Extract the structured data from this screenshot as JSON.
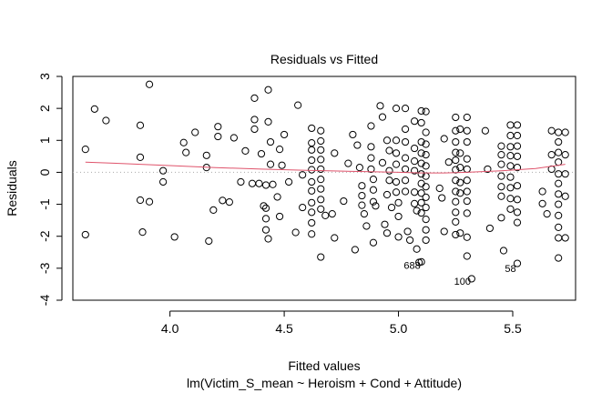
{
  "chart_data": {
    "type": "scatter",
    "title": "Residuals vs Fitted",
    "xlabel": "Fitted values",
    "subtitle": "lm(Victim_S_mean ~ Heroism + Cond + Attitude)",
    "ylabel": "Residuals",
    "xlim": [
      3.575,
      5.775
    ],
    "ylim": [
      -4.0,
      3.0
    ],
    "xticks": [
      4.0,
      4.5,
      5.0,
      5.5
    ],
    "yticks": [
      -4,
      -3,
      -2,
      -1,
      0,
      1,
      2,
      3
    ],
    "xtick_labels": [
      "4.0",
      "4.5",
      "5.0",
      "5.5"
    ],
    "ytick_labels": [
      "-4",
      "-3",
      "-2",
      "-1",
      "0",
      "1",
      "2",
      "3"
    ],
    "zero_line": true,
    "colors": {
      "points": "#000000",
      "smooth": "#df536b",
      "zero_line": "#aaaaaa",
      "frame": "#000000"
    },
    "points": [
      [
        3.63,
        0.72
      ],
      [
        3.63,
        -1.95
      ],
      [
        3.67,
        1.98
      ],
      [
        3.72,
        1.62
      ],
      [
        3.87,
        1.47
      ],
      [
        3.87,
        0.47
      ],
      [
        3.87,
        -0.87
      ],
      [
        3.88,
        -1.87
      ],
      [
        3.91,
        2.75
      ],
      [
        3.91,
        -0.92
      ],
      [
        3.97,
        0.05
      ],
      [
        3.97,
        -0.3
      ],
      [
        4.02,
        -2.02
      ],
      [
        4.06,
        0.93
      ],
      [
        4.07,
        0.62
      ],
      [
        4.11,
        1.25
      ],
      [
        4.16,
        0.53
      ],
      [
        4.16,
        0.15
      ],
      [
        4.17,
        -2.15
      ],
      [
        4.19,
        -1.18
      ],
      [
        4.21,
        1.12
      ],
      [
        4.21,
        1.43
      ],
      [
        4.23,
        -0.88
      ],
      [
        4.26,
        -0.93
      ],
      [
        4.28,
        1.08
      ],
      [
        4.31,
        -0.3
      ],
      [
        4.33,
        0.67
      ],
      [
        4.36,
        -0.35
      ],
      [
        4.37,
        2.32
      ],
      [
        4.37,
        1.65
      ],
      [
        4.37,
        1.35
      ],
      [
        4.39,
        -0.35
      ],
      [
        4.4,
        0.58
      ],
      [
        4.41,
        -1.05
      ],
      [
        4.42,
        -1.12
      ],
      [
        4.42,
        -0.4
      ],
      [
        4.42,
        -1.45
      ],
      [
        4.42,
        -1.8
      ],
      [
        4.43,
        -2.08
      ],
      [
        4.43,
        2.58
      ],
      [
        4.43,
        1.58
      ],
      [
        4.44,
        0.95
      ],
      [
        4.44,
        0.25
      ],
      [
        4.45,
        -0.38
      ],
      [
        4.47,
        -0.77
      ],
      [
        4.48,
        0.72
      ],
      [
        4.48,
        -1.38
      ],
      [
        4.49,
        0.22
      ],
      [
        4.5,
        1.18
      ],
      [
        4.52,
        -0.3
      ],
      [
        4.55,
        -1.88
      ],
      [
        4.56,
        2.1
      ],
      [
        4.58,
        -0.08
      ],
      [
        4.58,
        -1.1
      ],
      [
        4.62,
        1.38
      ],
      [
        4.62,
        0.92
      ],
      [
        4.62,
        0.7
      ],
      [
        4.62,
        0.38
      ],
      [
        4.62,
        0.08
      ],
      [
        4.62,
        -0.3
      ],
      [
        4.62,
        -0.58
      ],
      [
        4.62,
        -0.95
      ],
      [
        4.62,
        -1.25
      ],
      [
        4.62,
        -1.58
      ],
      [
        4.62,
        -1.93
      ],
      [
        4.66,
        1.3
      ],
      [
        4.66,
        0.98
      ],
      [
        4.66,
        0.7
      ],
      [
        4.66,
        0.4
      ],
      [
        4.66,
        0.1
      ],
      [
        4.66,
        -0.22
      ],
      [
        4.66,
        -0.52
      ],
      [
        4.66,
        -0.85
      ],
      [
        4.66,
        -1.15
      ],
      [
        4.66,
        -2.65
      ],
      [
        4.68,
        -1.35
      ],
      [
        4.71,
        -1.3
      ],
      [
        4.72,
        0.6
      ],
      [
        4.72,
        -2.05
      ],
      [
        4.76,
        -0.9
      ],
      [
        4.78,
        0.28
      ],
      [
        4.8,
        1.18
      ],
      [
        4.81,
        -2.42
      ],
      [
        4.82,
        0.85
      ],
      [
        4.83,
        0.15
      ],
      [
        4.84,
        -0.42
      ],
      [
        4.84,
        -0.73
      ],
      [
        4.84,
        -1.03
      ],
      [
        4.85,
        -1.3
      ],
      [
        4.86,
        -1.68
      ],
      [
        4.88,
        1.45
      ],
      [
        4.88,
        0.8
      ],
      [
        4.88,
        0.45
      ],
      [
        4.88,
        0.1
      ],
      [
        4.89,
        -0.22
      ],
      [
        4.89,
        -0.55
      ],
      [
        4.89,
        -0.92
      ],
      [
        4.89,
        -2.2
      ],
      [
        4.9,
        -1.05
      ],
      [
        4.92,
        2.08
      ],
      [
        4.93,
        1.73
      ],
      [
        4.93,
        0.3
      ],
      [
        4.94,
        -1.63
      ],
      [
        4.95,
        1.0
      ],
      [
        4.95,
        -0.7
      ],
      [
        4.95,
        -1.9
      ],
      [
        4.96,
        0.68
      ],
      [
        4.96,
        0.05
      ],
      [
        4.96,
        -0.25
      ],
      [
        4.97,
        -1.1
      ],
      [
        4.99,
        2.0
      ],
      [
        4.99,
        1.0
      ],
      [
        4.99,
        0.6
      ],
      [
        4.99,
        0.25
      ],
      [
        4.99,
        -0.3
      ],
      [
        4.99,
        -0.62
      ],
      [
        5.0,
        -0.95
      ],
      [
        5.0,
        -1.38
      ],
      [
        5.0,
        -2.02
      ],
      [
        5.03,
        2.0
      ],
      [
        5.03,
        1.35
      ],
      [
        5.03,
        0.95
      ],
      [
        5.03,
        0.45
      ],
      [
        5.03,
        0.1
      ],
      [
        5.03,
        -0.25
      ],
      [
        5.03,
        -0.6
      ],
      [
        5.04,
        -1.85
      ],
      [
        5.05,
        -2.12
      ],
      [
        5.07,
        1.6
      ],
      [
        5.07,
        0.75
      ],
      [
        5.07,
        0.35
      ],
      [
        5.07,
        0.05
      ],
      [
        5.07,
        -0.62
      ],
      [
        5.07,
        -0.98
      ],
      [
        5.08,
        -1.2
      ],
      [
        5.08,
        -2.4
      ],
      [
        5.09,
        -2.82
      ],
      [
        5.1,
        1.92
      ],
      [
        5.1,
        1.55
      ],
      [
        5.1,
        0.95
      ],
      [
        5.1,
        0.6
      ],
      [
        5.1,
        0.28
      ],
      [
        5.1,
        -0.05
      ],
      [
        5.1,
        -0.35
      ],
      [
        5.1,
        -0.65
      ],
      [
        5.1,
        -0.95
      ],
      [
        5.1,
        -1.27
      ],
      [
        5.1,
        -2.8
      ],
      [
        5.12,
        1.9
      ],
      [
        5.12,
        1.25
      ],
      [
        5.12,
        0.88
      ],
      [
        5.12,
        0.55
      ],
      [
        5.12,
        0.2
      ],
      [
        5.12,
        -0.12
      ],
      [
        5.12,
        -0.45
      ],
      [
        5.12,
        -0.78
      ],
      [
        5.12,
        -1.1
      ],
      [
        5.12,
        -1.47
      ],
      [
        5.12,
        -1.8
      ],
      [
        5.12,
        -2.12
      ],
      [
        5.18,
        -0.5
      ],
      [
        5.19,
        -0.8
      ],
      [
        5.2,
        -1.85
      ],
      [
        5.2,
        1.05
      ],
      [
        5.22,
        0.32
      ],
      [
        5.25,
        1.72
      ],
      [
        5.25,
        1.3
      ],
      [
        5.25,
        0.95
      ],
      [
        5.25,
        0.62
      ],
      [
        5.25,
        0.38
      ],
      [
        5.25,
        0.08
      ],
      [
        5.25,
        -0.25
      ],
      [
        5.25,
        -0.6
      ],
      [
        5.25,
        -0.92
      ],
      [
        5.25,
        -1.25
      ],
      [
        5.25,
        -1.55
      ],
      [
        5.25,
        -1.95
      ],
      [
        5.27,
        1.35
      ],
      [
        5.27,
        0.6
      ],
      [
        5.27,
        0.15
      ],
      [
        5.27,
        -0.32
      ],
      [
        5.27,
        -0.65
      ],
      [
        5.27,
        -1.9
      ],
      [
        5.3,
        1.72
      ],
      [
        5.3,
        1.3
      ],
      [
        5.3,
        0.95
      ],
      [
        5.3,
        0.42
      ],
      [
        5.3,
        0.1
      ],
      [
        5.3,
        -0.25
      ],
      [
        5.3,
        -0.6
      ],
      [
        5.3,
        -0.9
      ],
      [
        5.3,
        -1.28
      ],
      [
        5.3,
        -2.03
      ],
      [
        5.3,
        -2.62
      ],
      [
        5.32,
        -3.33
      ],
      [
        5.38,
        1.3
      ],
      [
        5.39,
        0.1
      ],
      [
        5.4,
        -1.75
      ],
      [
        5.45,
        0.82
      ],
      [
        5.45,
        0.55
      ],
      [
        5.45,
        0.25
      ],
      [
        5.45,
        -0.12
      ],
      [
        5.45,
        -0.45
      ],
      [
        5.45,
        -0.75
      ],
      [
        5.45,
        -1.42
      ],
      [
        5.46,
        -2.45
      ],
      [
        5.49,
        1.48
      ],
      [
        5.49,
        1.15
      ],
      [
        5.49,
        0.8
      ],
      [
        5.49,
        0.52
      ],
      [
        5.49,
        0.2
      ],
      [
        5.49,
        -0.15
      ],
      [
        5.49,
        -0.48
      ],
      [
        5.49,
        -0.82
      ],
      [
        5.49,
        -1.15
      ],
      [
        5.52,
        1.48
      ],
      [
        5.52,
        1.15
      ],
      [
        5.52,
        0.82
      ],
      [
        5.52,
        0.5
      ],
      [
        5.52,
        0.15
      ],
      [
        5.52,
        -0.42
      ],
      [
        5.52,
        -0.85
      ],
      [
        5.52,
        -1.25
      ],
      [
        5.52,
        -1.57
      ],
      [
        5.52,
        -2.85
      ],
      [
        5.63,
        -0.6
      ],
      [
        5.63,
        -0.98
      ],
      [
        5.65,
        -1.3
      ],
      [
        5.67,
        1.3
      ],
      [
        5.67,
        0.55
      ],
      [
        5.67,
        0.1
      ],
      [
        5.7,
        1.25
      ],
      [
        5.7,
        0.95
      ],
      [
        5.7,
        0.62
      ],
      [
        5.7,
        0.32
      ],
      [
        5.7,
        -0.05
      ],
      [
        5.7,
        -0.35
      ],
      [
        5.7,
        -0.68
      ],
      [
        5.7,
        -1.0
      ],
      [
        5.7,
        -1.35
      ],
      [
        5.7,
        -1.72
      ],
      [
        5.7,
        -2.05
      ],
      [
        5.7,
        -2.68
      ],
      [
        5.73,
        1.25
      ],
      [
        5.73,
        0.55
      ],
      [
        5.73,
        -0.05
      ],
      [
        5.73,
        -0.75
      ],
      [
        5.73,
        -2.05
      ]
    ],
    "smooth_line": [
      [
        3.63,
        0.32
      ],
      [
        3.8,
        0.27
      ],
      [
        4.0,
        0.21
      ],
      [
        4.2,
        0.15
      ],
      [
        4.4,
        0.1
      ],
      [
        4.6,
        0.06
      ],
      [
        4.8,
        0.03
      ],
      [
        5.0,
        0.0
      ],
      [
        5.1,
        -0.02
      ],
      [
        5.2,
        -0.02
      ],
      [
        5.3,
        0.0
      ],
      [
        5.45,
        0.05
      ],
      [
        5.6,
        0.12
      ],
      [
        5.73,
        0.25
      ]
    ],
    "annotations": [
      {
        "label": "688",
        "x": 5.06,
        "y": -2.9
      },
      {
        "label": "100",
        "x": 5.28,
        "y": -3.4
      },
      {
        "label": "58",
        "x": 5.49,
        "y": -3.0
      }
    ]
  }
}
